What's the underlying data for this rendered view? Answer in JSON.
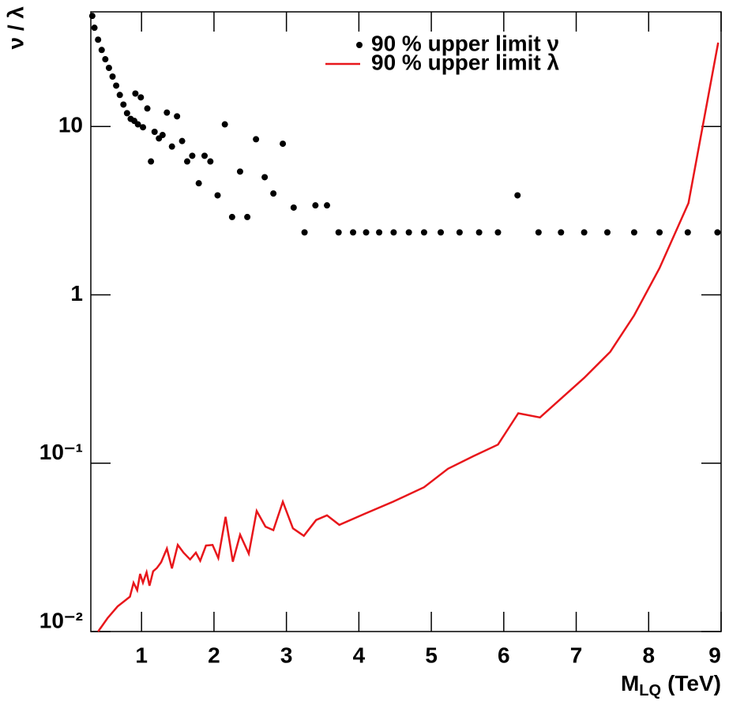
{
  "chart_data": {
    "type": "line",
    "x_label": "M",
    "x_label_subscript": "LQ",
    "x_label_unit": "(TeV)",
    "y_label": "ν / λ",
    "yscale": "log",
    "xlim": [
      0.3,
      9
    ],
    "ylim": [
      0.01,
      48
    ],
    "xticks": [
      1,
      2,
      3,
      4,
      5,
      6,
      7,
      8,
      9
    ],
    "yticks": [
      {
        "value": 0.01,
        "label": "10⁻²"
      },
      {
        "value": 0.1,
        "label": "10⁻¹"
      },
      1,
      10
    ],
    "legend": "top-right",
    "series": [
      {
        "name": "90 % upper limit ν",
        "type": "scatter",
        "color": "#000000",
        "x": [
          0.32,
          0.35,
          0.4,
          0.45,
          0.5,
          0.55,
          0.6,
          0.65,
          0.7,
          0.75,
          0.8,
          0.85,
          0.9,
          0.915,
          0.95,
          0.99,
          1.02,
          1.08,
          1.13,
          1.18,
          1.24,
          1.29,
          1.35,
          1.42,
          1.49,
          1.56,
          1.63,
          1.7,
          1.79,
          1.87,
          1.95,
          2.05,
          2.15,
          2.25,
          2.36,
          2.46,
          2.58,
          2.7,
          2.82,
          2.95,
          3.1,
          3.25,
          3.4,
          3.56,
          3.72,
          3.92,
          4.1,
          4.28,
          4.48,
          4.69,
          4.9,
          5.13,
          5.39,
          5.66,
          5.92,
          6.19,
          6.48,
          6.79,
          7.11,
          7.43,
          7.8,
          8.15,
          8.54,
          8.95
        ],
        "values": [
          45.4,
          38.6,
          32.8,
          28.5,
          25.1,
          22.3,
          19.8,
          17.5,
          15.4,
          13.5,
          12.0,
          11.1,
          10.8,
          15.7,
          10.3,
          14.9,
          9.9,
          12.8,
          6.2,
          9.3,
          8.5,
          8.9,
          12.1,
          7.6,
          11.5,
          8.2,
          6.2,
          6.7,
          4.6,
          6.7,
          6.2,
          3.9,
          10.3,
          2.9,
          5.4,
          2.9,
          8.4,
          5.0,
          4.0,
          7.9,
          3.3,
          2.35,
          3.4,
          3.4,
          2.35,
          2.35,
          2.35,
          2.35,
          2.35,
          2.35,
          2.35,
          2.35,
          2.35,
          2.35,
          2.35,
          3.9,
          2.35,
          2.35,
          2.35,
          2.35,
          2.35,
          2.35,
          2.35,
          2.35
        ]
      },
      {
        "name": "90 % upper limit λ",
        "type": "line",
        "color": "#e8161b",
        "x": [
          0.4,
          0.53,
          0.67,
          0.84,
          0.89,
          0.94,
          0.98,
          1.02,
          1.07,
          1.11,
          1.16,
          1.21,
          1.27,
          1.35,
          1.42,
          1.5,
          1.58,
          1.67,
          1.75,
          1.81,
          1.89,
          1.98,
          2.06,
          2.16,
          2.26,
          2.36,
          2.48,
          2.59,
          2.71,
          2.82,
          2.95,
          3.09,
          3.24,
          3.41,
          3.56,
          3.73,
          4.08,
          4.47,
          4.9,
          5.23,
          5.58,
          5.92,
          6.2,
          6.5,
          7.11,
          7.47,
          7.8,
          8.15,
          8.55,
          8.96
        ],
        "values": [
          0.01,
          0.012,
          0.0141,
          0.0161,
          0.0195,
          0.0176,
          0.022,
          0.0195,
          0.0225,
          0.0187,
          0.0228,
          0.0238,
          0.0258,
          0.0311,
          0.0237,
          0.0327,
          0.0294,
          0.0268,
          0.0294,
          0.0263,
          0.0324,
          0.0327,
          0.0273,
          0.048,
          0.026,
          0.0376,
          0.029,
          0.052,
          0.042,
          0.04,
          0.059,
          0.041,
          0.037,
          0.046,
          0.049,
          0.043,
          0.05,
          0.059,
          0.072,
          0.0927,
          0.11,
          0.129,
          0.198,
          0.187,
          0.321,
          0.459,
          0.755,
          1.44,
          3.51,
          31.5
        ]
      }
    ]
  }
}
